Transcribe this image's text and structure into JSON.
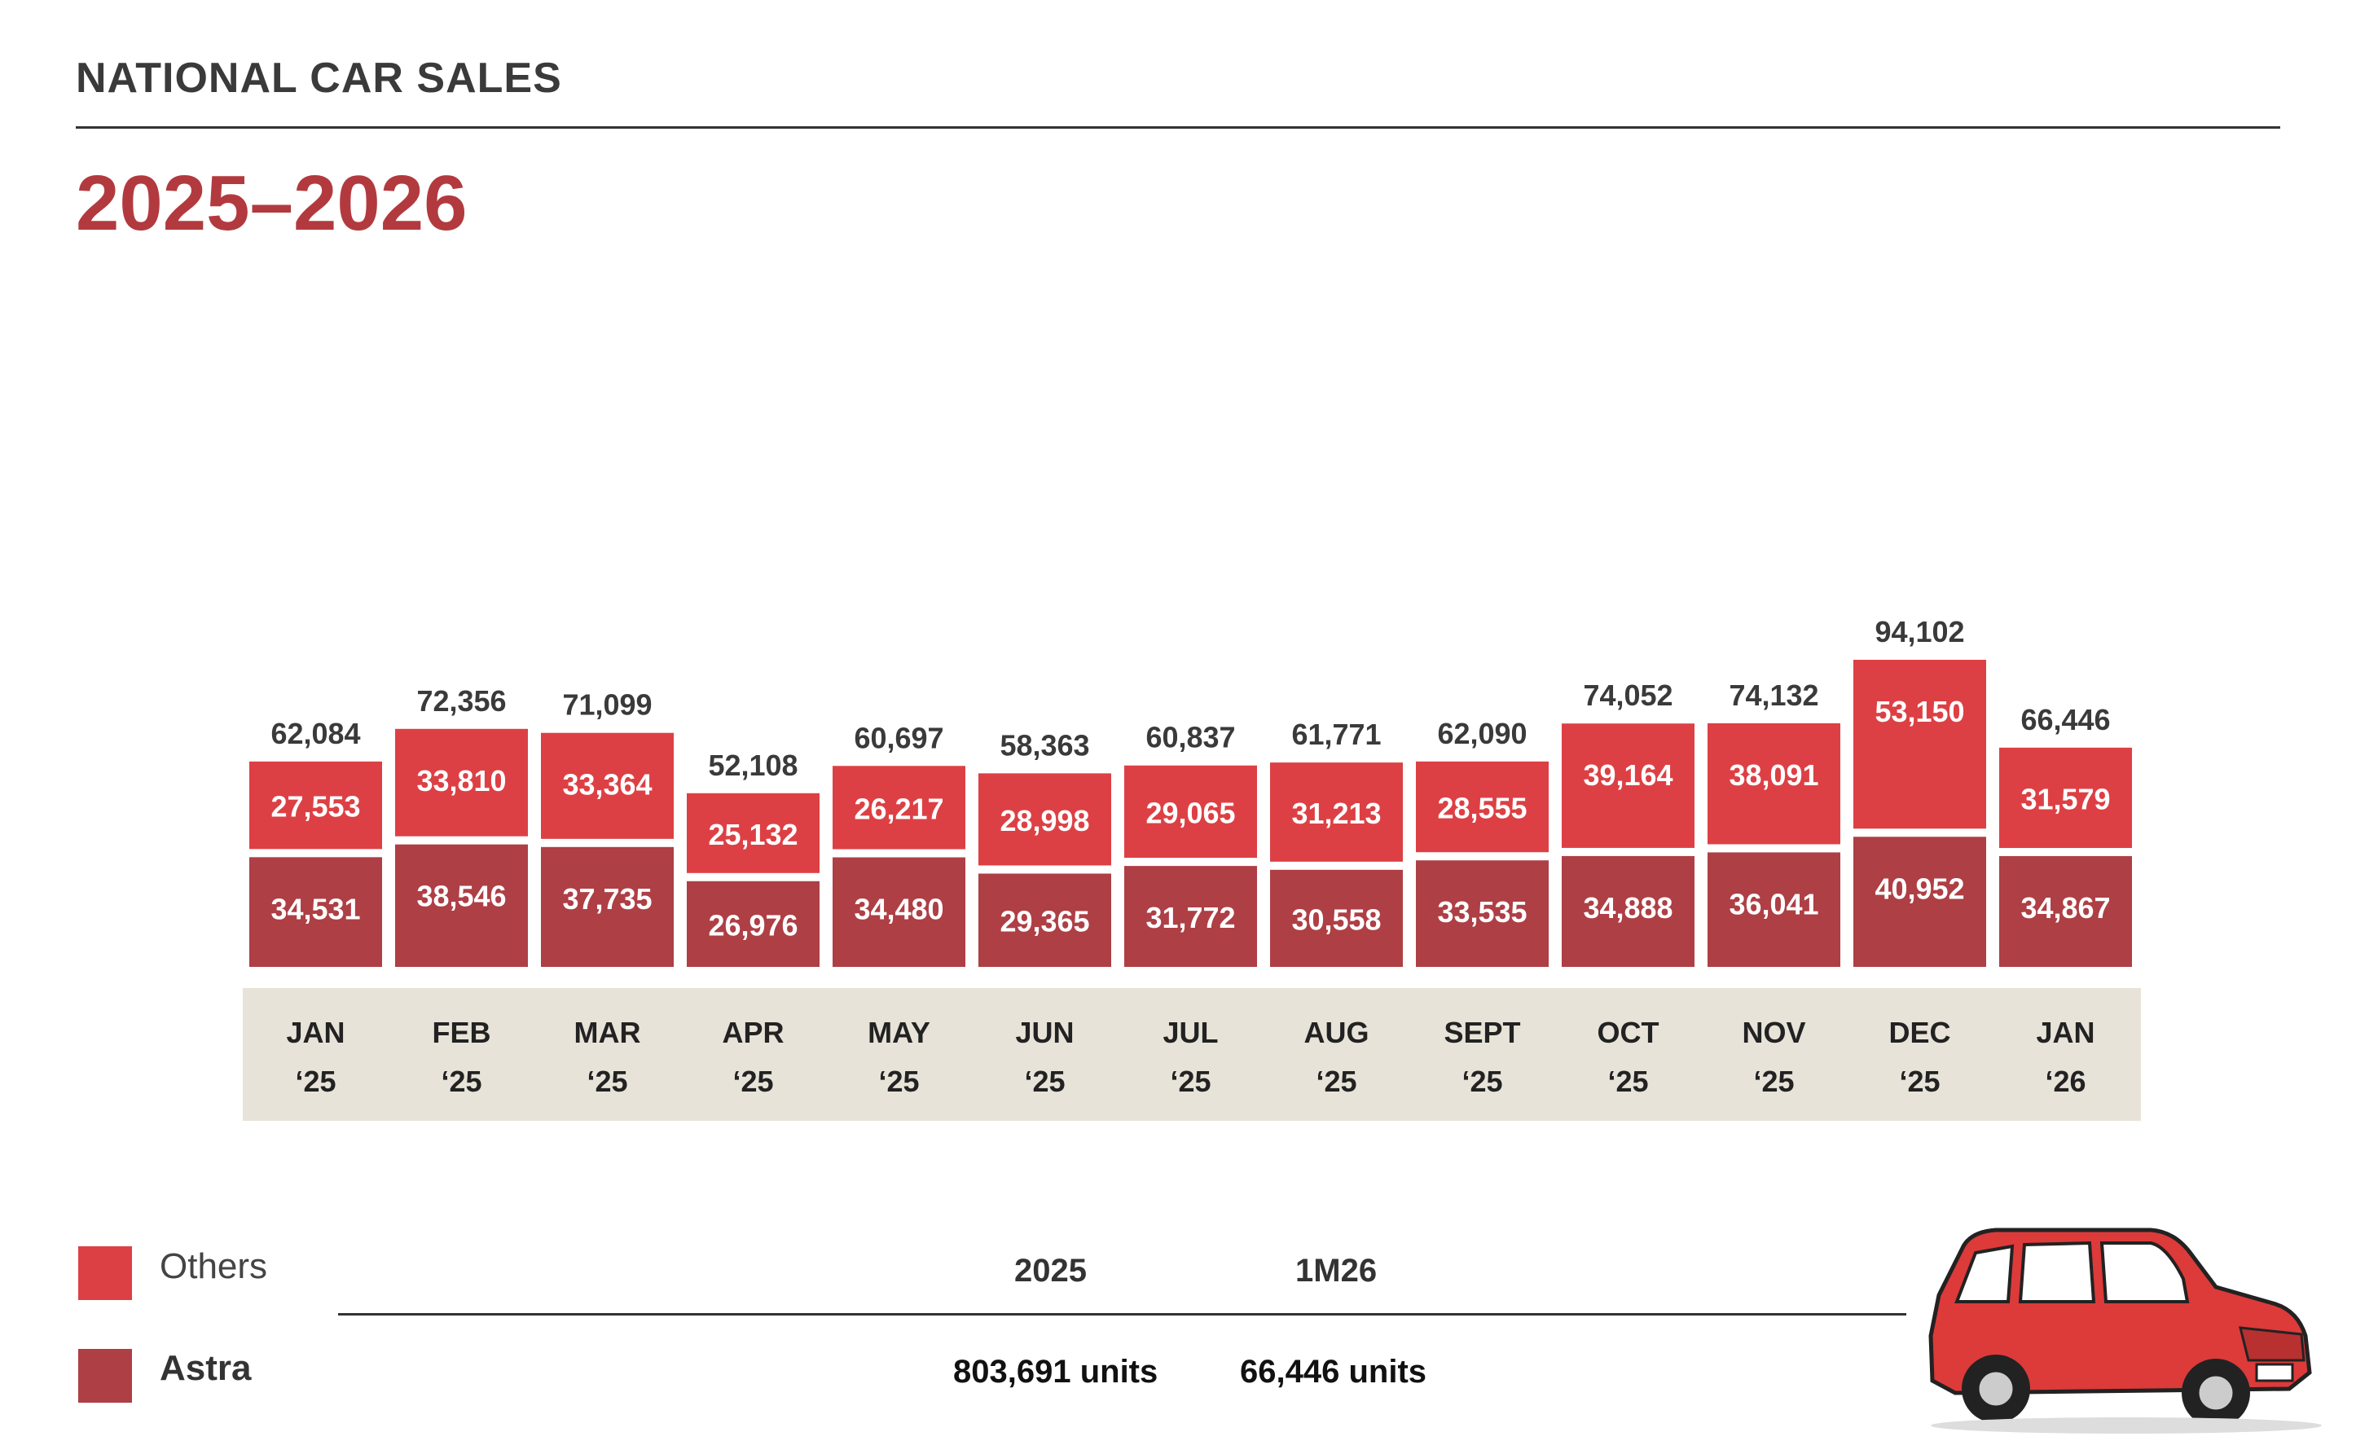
{
  "header": {
    "title": "NATIONAL CAR SALES",
    "period": "2025–2026"
  },
  "colors": {
    "others": "#dd4044",
    "astra": "#ae3f45",
    "axis_band": "#e8e3d8",
    "period": "#b23a3e"
  },
  "chart_data": {
    "type": "bar",
    "stacked": true,
    "categories": [
      [
        "JAN",
        "‘25"
      ],
      [
        "FEB",
        "‘25"
      ],
      [
        "MAR",
        "‘25"
      ],
      [
        "APR",
        "‘25"
      ],
      [
        "MAY",
        "‘25"
      ],
      [
        "JUN",
        "‘25"
      ],
      [
        "JUL",
        "‘25"
      ],
      [
        "AUG",
        "‘25"
      ],
      [
        "SEPT",
        "‘25"
      ],
      [
        "OCT",
        "‘25"
      ],
      [
        "NOV",
        "‘25"
      ],
      [
        "DEC",
        "‘25"
      ],
      [
        "JAN",
        "‘26"
      ]
    ],
    "series": [
      {
        "name": "Astra",
        "values": [
          34531,
          38546,
          37735,
          26976,
          34480,
          29365,
          31772,
          30558,
          33535,
          34888,
          36041,
          40952,
          34867
        ]
      },
      {
        "name": "Others",
        "values": [
          27553,
          33810,
          33364,
          25132,
          26217,
          28998,
          29065,
          31213,
          28555,
          39164,
          38091,
          53150,
          31579
        ]
      }
    ],
    "totals": [
      62084,
      72356,
      71099,
      52108,
      60697,
      58363,
      60837,
      61771,
      62090,
      74052,
      74132,
      94102,
      66446
    ],
    "legend": [
      "Others",
      "Astra"
    ],
    "legend_position": "bottom-left",
    "grid": false
  },
  "summary": {
    "col1_label": "2025",
    "col1_value": "803,691 units",
    "col2_label": "1M26",
    "col2_value": "66,446 units"
  }
}
